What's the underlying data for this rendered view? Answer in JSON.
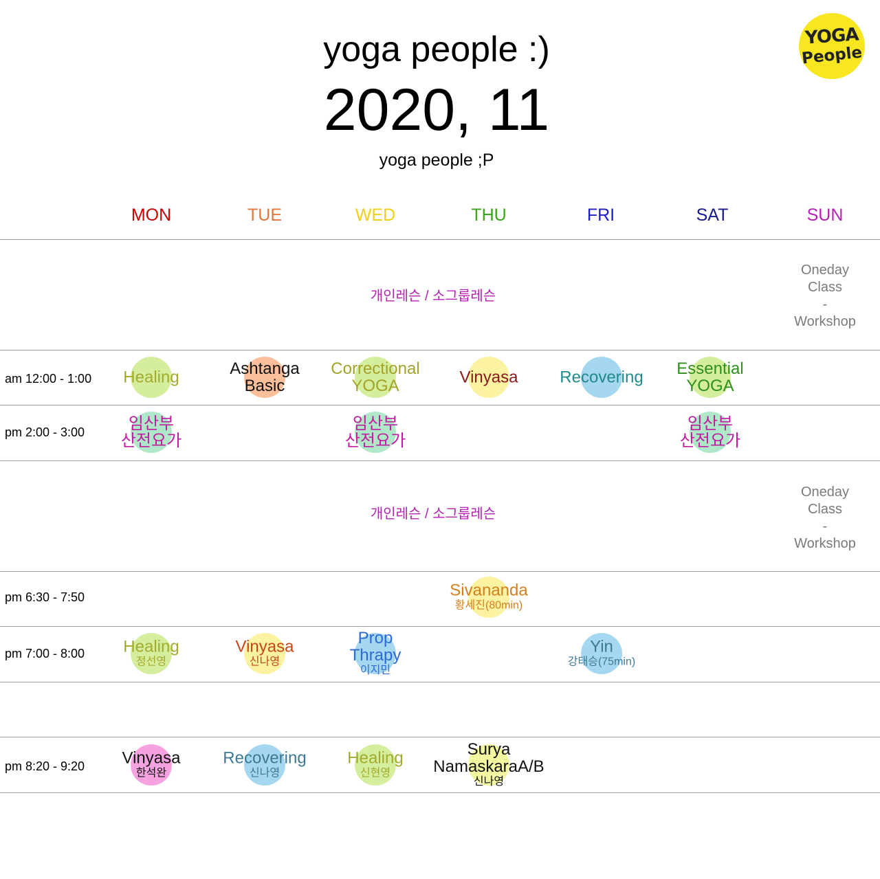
{
  "header": {
    "title": "yoga people :)",
    "month": "2020, 11",
    "subtitle": "yoga people ;P",
    "logo_line1": "YOGA",
    "logo_line2": "People"
  },
  "days": [
    {
      "label": "MON",
      "color": "#cc0000"
    },
    {
      "label": "TUE",
      "color": "#e8763a"
    },
    {
      "label": "WED",
      "color": "#f0d010"
    },
    {
      "label": "THU",
      "color": "#3aa516"
    },
    {
      "label": "FRI",
      "color": "#1b1bc9"
    },
    {
      "label": "SAT",
      "color": "#18188f"
    },
    {
      "label": "SUN",
      "color": "#b620b4"
    }
  ],
  "free_blocks": [
    {
      "label": "개인레슨 / 소그룹레슨",
      "sunday": [
        "Oneday",
        "Class",
        "-",
        "Workshop"
      ]
    },
    {
      "label": "개인레슨 / 소그룹레슨",
      "sunday": [
        "Oneday",
        "Class",
        "-",
        "Workshop"
      ]
    }
  ],
  "time_slots": [
    {
      "label": "am 12:00 - 1:00"
    },
    {
      "label": "pm 2:00 - 3:00"
    },
    {
      "label": "pm 6:30 - 7:50"
    },
    {
      "label": "pm 7:00 - 8:00"
    },
    {
      "label": "pm 8:20 - 9:20"
    }
  ],
  "classes": [
    {
      "slot": 0,
      "day": "MON",
      "name": [
        "Healing"
      ],
      "teacher": "",
      "color": "#a3aa2c",
      "circle": "#d5ee9e"
    },
    {
      "slot": 0,
      "day": "TUE",
      "name": [
        "Ashtanga",
        "Basic"
      ],
      "teacher": "",
      "color": "#111111",
      "circle": "#fcbf9a"
    },
    {
      "slot": 0,
      "day": "WED",
      "name": [
        "Correctional",
        "YOGA"
      ],
      "teacher": "",
      "color": "#a3a329",
      "circle": "#d5ee9e"
    },
    {
      "slot": 0,
      "day": "THU",
      "name": [
        "Vinyasa"
      ],
      "teacher": "",
      "color": "#8a1a1a",
      "circle": "#fbf2a2"
    },
    {
      "slot": 0,
      "day": "FRI",
      "name": [
        "Recovering"
      ],
      "teacher": "",
      "color": "#1f8a8a",
      "circle": "#a6d7f0"
    },
    {
      "slot": 0,
      "day": "SAT",
      "name": [
        "Essential",
        "YOGA"
      ],
      "teacher": "",
      "color": "#2f8f1c",
      "circle": "#d5ee9e"
    },
    {
      "slot": 1,
      "day": "MON",
      "name": [
        "임산부",
        "산전요가"
      ],
      "teacher": "",
      "color": "#c21aa0",
      "circle": "#aee8c9"
    },
    {
      "slot": 1,
      "day": "WED",
      "name": [
        "임산부",
        "산전요가"
      ],
      "teacher": "",
      "color": "#c21aa0",
      "circle": "#aee8c9"
    },
    {
      "slot": 1,
      "day": "SAT",
      "name": [
        "임산부",
        "산전요가"
      ],
      "teacher": "",
      "color": "#c21aa0",
      "circle": "#aee8c9"
    },
    {
      "slot": 2,
      "day": "THU",
      "name": [
        "Sivananda"
      ],
      "teacher": "황세진(80min)",
      "color": "#d5801e",
      "circle": "#fbf2a2"
    },
    {
      "slot": 3,
      "day": "MON",
      "name": [
        "Healing"
      ],
      "teacher": "정선영",
      "color": "#a3aa2c",
      "circle": "#d5ee9e"
    },
    {
      "slot": 3,
      "day": "TUE",
      "name": [
        "Vinyasa"
      ],
      "teacher": "신나영",
      "color": "#c8461a",
      "circle": "#fbf2a2"
    },
    {
      "slot": 3,
      "day": "WED",
      "name": [
        "Prop",
        "Thrapy"
      ],
      "teacher": "이지민",
      "color": "#2d6bd3",
      "circle": "#a6d7f0"
    },
    {
      "slot": 3,
      "day": "FRI",
      "name": [
        "Yin"
      ],
      "teacher": "강태승(75min)",
      "color": "#3d7a92",
      "circle": "#a6d7f0"
    },
    {
      "slot": 4,
      "day": "MON",
      "name": [
        "Vinyasa"
      ],
      "teacher": "한석완",
      "color": "#111111",
      "circle": "#f7a2e0"
    },
    {
      "slot": 4,
      "day": "TUE",
      "name": [
        "Recovering"
      ],
      "teacher": "신나영",
      "color": "#3d7a92",
      "circle": "#a6d7f0"
    },
    {
      "slot": 4,
      "day": "WED",
      "name": [
        "Healing"
      ],
      "teacher": "신현영",
      "color": "#a3aa2c",
      "circle": "#d5ee9e"
    },
    {
      "slot": 4,
      "day": "THU",
      "name": [
        "Surya",
        "NamaskaraA/B"
      ],
      "teacher": "신나영",
      "color": "#111111",
      "circle": "#f2f7a0"
    }
  ]
}
